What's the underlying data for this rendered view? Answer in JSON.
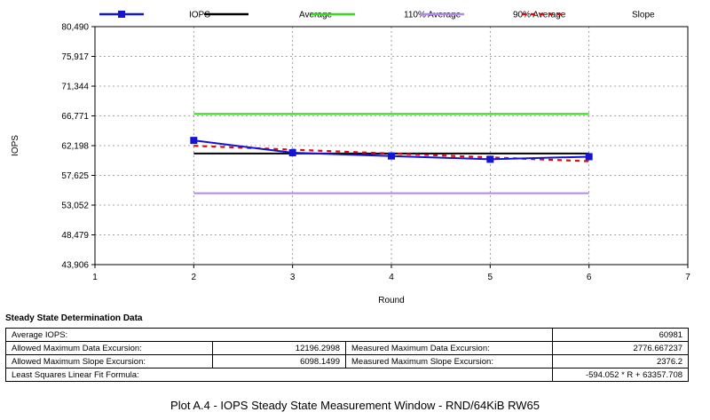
{
  "chart_data": {
    "type": "line",
    "xlabel": "Round",
    "ylabel": "IOPS",
    "xlim": [
      1,
      7
    ],
    "xticks": [
      1,
      2,
      3,
      4,
      5,
      6,
      7
    ],
    "ylim": [
      43906,
      80490
    ],
    "yticks": [
      "80,490",
      "75,917",
      "71,344",
      "66,771",
      "62,198",
      "57,625",
      "53,052",
      "48,479",
      "43,906"
    ],
    "grid": true,
    "legend_position": "top",
    "series": [
      {
        "name": "IOPS",
        "color": "#1414d2",
        "style": "solid-square-markers",
        "x": [
          2,
          3,
          4,
          5,
          6
        ],
        "y": [
          63000,
          61100,
          60600,
          60100,
          60500
        ]
      },
      {
        "name": "Average",
        "color": "#000000",
        "style": "solid",
        "x": [
          2,
          6
        ],
        "y": [
          60981,
          60981
        ]
      },
      {
        "name": "110% Average",
        "color": "#33dd1a",
        "style": "solid",
        "x": [
          2,
          6
        ],
        "y": [
          67079,
          67079
        ]
      },
      {
        "name": "90% Average",
        "color": "#b088f0",
        "style": "solid",
        "x": [
          2,
          6
        ],
        "y": [
          54883,
          54883
        ]
      },
      {
        "name": "Slope",
        "color": "#d01010",
        "style": "dashed",
        "x": [
          2,
          6
        ],
        "y": [
          62170,
          59794
        ]
      }
    ]
  },
  "ss": {
    "title": "Steady State Determination Data",
    "avg_label": "Average IOPS:",
    "avg_value": "60981",
    "allowed_data_label": "Allowed Maximum Data Excursion:",
    "allowed_data_value": "12196.2998",
    "measured_data_label": "Measured Maximum Data Excursion:",
    "measured_data_value": "2776.667237",
    "allowed_slope_label": "Allowed Maximum Slope Excursion:",
    "allowed_slope_value": "6098.1499",
    "measured_slope_label": "Measured Maximum Slope Excursion:",
    "measured_slope_value": "2376.2",
    "fit_label": "Least Squares Linear Fit Formula:",
    "fit_value": "-594.052 * R + 63357.708"
  },
  "caption": "Plot A.4 - IOPS Steady State Measurement Window - RND/64KiB RW65"
}
